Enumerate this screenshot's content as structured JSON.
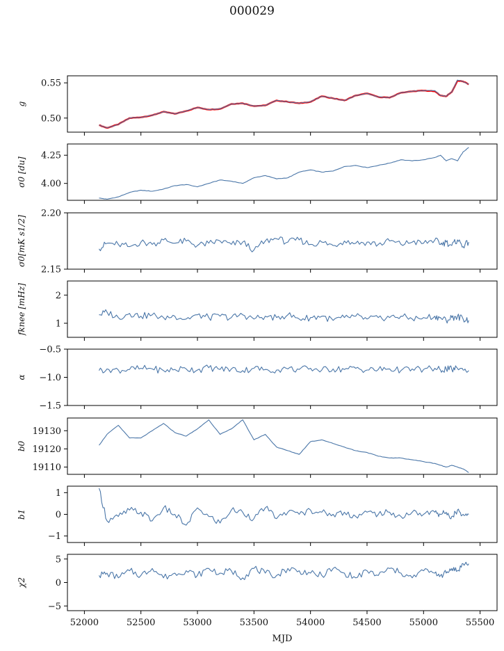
{
  "figure": {
    "title": "000029",
    "xlabel": "MJD"
  },
  "style": {
    "series_color": "#4a76a8",
    "overlay_color": "#ff0000",
    "axis_color": "#000000"
  },
  "chart_data": [
    {
      "type": "line",
      "ylabel": "g",
      "xlim": [
        51850,
        55650
      ],
      "ylim": [
        0.48,
        0.56
      ],
      "yticks": [
        0.5,
        0.55
      ],
      "ytick_labels": [
        "0.50",
        "0.55"
      ],
      "series": [
        {
          "role": "model",
          "x": [
            52130,
            52200,
            52300,
            52400,
            52500,
            52600,
            52700,
            52800,
            52900,
            53000,
            53100,
            53200,
            53300,
            53400,
            53500,
            53600,
            53700,
            53800,
            53900,
            54000,
            54100,
            54200,
            54300,
            54400,
            54500,
            54600,
            54700,
            54800,
            54900,
            55000,
            55100,
            55150,
            55200,
            55250,
            55300,
            55350,
            55400
          ],
          "values": [
            0.49,
            0.486,
            0.491,
            0.5,
            0.501,
            0.504,
            0.509,
            0.506,
            0.51,
            0.515,
            0.512,
            0.513,
            0.52,
            0.521,
            0.517,
            0.518,
            0.525,
            0.523,
            0.521,
            0.523,
            0.531,
            0.528,
            0.525,
            0.532,
            0.535,
            0.53,
            0.529,
            0.536,
            0.538,
            0.539,
            0.538,
            0.532,
            0.531,
            0.537,
            0.553,
            0.552,
            0.548
          ]
        },
        {
          "role": "data",
          "x": [
            52130,
            52200,
            52300,
            52400,
            52500,
            52600,
            52700,
            52800,
            52900,
            53000,
            53100,
            53200,
            53300,
            53400,
            53500,
            53600,
            53700,
            53800,
            53900,
            54000,
            54100,
            54200,
            54300,
            54400,
            54500,
            54600,
            54700,
            54800,
            54900,
            55000,
            55100,
            55150,
            55200,
            55250,
            55300,
            55350,
            55400
          ],
          "values": [
            0.49,
            0.486,
            0.491,
            0.5,
            0.501,
            0.504,
            0.509,
            0.506,
            0.51,
            0.515,
            0.512,
            0.513,
            0.52,
            0.521,
            0.517,
            0.518,
            0.525,
            0.523,
            0.521,
            0.523,
            0.531,
            0.528,
            0.525,
            0.532,
            0.535,
            0.53,
            0.529,
            0.536,
            0.538,
            0.539,
            0.539,
            0.532,
            0.531,
            0.537,
            0.554,
            0.552,
            0.548
          ]
        }
      ]
    },
    {
      "type": "line",
      "ylabel": "σ0 [du]",
      "xlim": [
        51850,
        55650
      ],
      "ylim": [
        3.85,
        4.35
      ],
      "yticks": [
        4.0,
        4.25
      ],
      "ytick_labels": [
        "4.00",
        "4.25"
      ],
      "series": [
        {
          "role": "data",
          "x": [
            52130,
            52200,
            52300,
            52400,
            52500,
            52600,
            52700,
            52800,
            52900,
            53000,
            53100,
            53200,
            53300,
            53400,
            53500,
            53600,
            53700,
            53800,
            53900,
            54000,
            54100,
            54200,
            54300,
            54400,
            54500,
            54600,
            54700,
            54800,
            54900,
            55000,
            55100,
            55150,
            55200,
            55250,
            55300,
            55350,
            55400
          ],
          "values": [
            3.87,
            3.86,
            3.88,
            3.92,
            3.94,
            3.93,
            3.95,
            3.98,
            3.99,
            3.97,
            4.0,
            4.03,
            4.02,
            4.0,
            4.05,
            4.07,
            4.04,
            4.05,
            4.1,
            4.12,
            4.1,
            4.11,
            4.15,
            4.16,
            4.14,
            4.16,
            4.18,
            4.21,
            4.2,
            4.21,
            4.23,
            4.25,
            4.2,
            4.22,
            4.2,
            4.28,
            4.32
          ]
        }
      ]
    },
    {
      "type": "line",
      "ylabel": "σ0[mK s1/2]",
      "xlim": [
        51850,
        55650
      ],
      "ylim": [
        2.15,
        2.2
      ],
      "yticks": [
        2.15,
        2.2
      ],
      "ytick_labels": [
        "2.15",
        "2.20"
      ],
      "series": [
        {
          "role": "data",
          "x": [
            52130,
            52200,
            52300,
            52400,
            52500,
            52600,
            52700,
            52800,
            52900,
            53000,
            53100,
            53200,
            53300,
            53400,
            53500,
            53600,
            53700,
            53800,
            53900,
            54000,
            54100,
            54200,
            54300,
            54400,
            54500,
            54600,
            54700,
            54800,
            54900,
            55000,
            55100,
            55150,
            55200,
            55250,
            55300,
            55350,
            55400
          ],
          "values": [
            2.168,
            2.173,
            2.172,
            2.17,
            2.174,
            2.172,
            2.176,
            2.173,
            2.175,
            2.171,
            2.173,
            2.175,
            2.172,
            2.174,
            2.167,
            2.175,
            2.177,
            2.174,
            2.176,
            2.172,
            2.174,
            2.171,
            2.175,
            2.173,
            2.174,
            2.172,
            2.175,
            2.172,
            2.174,
            2.173,
            2.176,
            2.172,
            2.174,
            2.171,
            2.176,
            2.17,
            2.174
          ]
        }
      ]
    },
    {
      "type": "line",
      "ylabel": "fknee [mHz]",
      "xlim": [
        51850,
        55650
      ],
      "ylim": [
        0.5,
        2.5
      ],
      "yticks": [
        1,
        2
      ],
      "ytick_labels": [
        "1",
        "2"
      ],
      "series": [
        {
          "role": "data",
          "x": [
            52130,
            52200,
            52300,
            52400,
            52500,
            52600,
            52700,
            52800,
            52900,
            53000,
            53100,
            53200,
            53300,
            53400,
            53500,
            53600,
            53700,
            53800,
            53900,
            54000,
            54100,
            54200,
            54300,
            54400,
            54500,
            54600,
            54700,
            54800,
            54900,
            55000,
            55100,
            55150,
            55200,
            55250,
            55300,
            55350,
            55400
          ],
          "values": [
            1.3,
            1.4,
            1.2,
            1.35,
            1.25,
            1.3,
            1.2,
            1.25,
            1.15,
            1.3,
            1.2,
            1.25,
            1.2,
            1.3,
            1.15,
            1.25,
            1.2,
            1.3,
            1.15,
            1.2,
            1.25,
            1.1,
            1.2,
            1.25,
            1.15,
            1.2,
            1.2,
            1.25,
            1.15,
            1.2,
            1.25,
            1.2,
            1.1,
            1.2,
            1.25,
            1.15,
            1.1
          ]
        }
      ]
    },
    {
      "type": "line",
      "ylabel": "α",
      "xlim": [
        51850,
        55650
      ],
      "ylim": [
        -1.5,
        -0.5
      ],
      "yticks": [
        -1.5,
        -1.0,
        -0.5
      ],
      "ytick_labels": [
        "−1.5",
        "−1.0",
        "−0.5"
      ],
      "series": [
        {
          "role": "data",
          "x": [
            52130,
            52200,
            52300,
            52400,
            52500,
            52600,
            52700,
            52800,
            52900,
            53000,
            53100,
            53200,
            53300,
            53400,
            53500,
            53600,
            53700,
            53800,
            53900,
            54000,
            54100,
            54200,
            54300,
            54400,
            54500,
            54600,
            54700,
            54800,
            54900,
            55000,
            55100,
            55150,
            55200,
            55250,
            55300,
            55350,
            55400
          ],
          "values": [
            -0.88,
            -0.85,
            -0.87,
            -0.86,
            -0.84,
            -0.85,
            -0.88,
            -0.86,
            -0.85,
            -0.87,
            -0.83,
            -0.86,
            -0.85,
            -0.88,
            -0.84,
            -0.86,
            -0.87,
            -0.85,
            -0.86,
            -0.84,
            -0.87,
            -0.85,
            -0.86,
            -0.84,
            -0.87,
            -0.86,
            -0.85,
            -0.88,
            -0.85,
            -0.86,
            -0.84,
            -0.87,
            -0.85,
            -0.86,
            -0.84,
            -0.87,
            -0.88
          ]
        }
      ]
    },
    {
      "type": "line",
      "ylabel": "b0",
      "xlim": [
        51850,
        55650
      ],
      "ylim": [
        19106,
        19137
      ],
      "yticks": [
        19110,
        19120,
        19130
      ],
      "ytick_labels": [
        "19110",
        "19120",
        "19130"
      ],
      "series": [
        {
          "role": "data",
          "x": [
            52130,
            52200,
            52300,
            52400,
            52500,
            52600,
            52700,
            52800,
            52900,
            53000,
            53100,
            53200,
            53300,
            53400,
            53500,
            53600,
            53700,
            53800,
            53900,
            54000,
            54100,
            54200,
            54300,
            54400,
            54500,
            54600,
            54700,
            54800,
            54900,
            55000,
            55100,
            55150,
            55200,
            55250,
            55300,
            55350,
            55400
          ],
          "values": [
            19122,
            19128,
            19133,
            19126,
            19126,
            19130,
            19134,
            19129,
            19127,
            19131,
            19136,
            19128,
            19131,
            19136,
            19125,
            19128,
            19121,
            19119,
            19117,
            19124,
            19125,
            19123,
            19121,
            19119,
            19118,
            19116,
            19115,
            19115,
            19114,
            19113,
            19112,
            19111,
            19110,
            19111,
            19110,
            19109,
            19107
          ]
        }
      ]
    },
    {
      "type": "line",
      "ylabel": "b1",
      "xlim": [
        51850,
        55650
      ],
      "ylim": [
        -1.3,
        1.3
      ],
      "yticks": [
        -1,
        0,
        1
      ],
      "ytick_labels": [
        "−1",
        "0",
        "1"
      ],
      "series": [
        {
          "role": "data",
          "x": [
            52130,
            52200,
            52300,
            52400,
            52500,
            52600,
            52700,
            52800,
            52900,
            53000,
            53100,
            53200,
            53300,
            53400,
            53500,
            53600,
            53700,
            53800,
            53900,
            54000,
            54100,
            54200,
            54300,
            54400,
            54500,
            54600,
            54700,
            54800,
            54900,
            55000,
            55100,
            55150,
            55200,
            55250,
            55300,
            55350,
            55400
          ],
          "values": [
            1.2,
            -0.3,
            -0.1,
            0.2,
            0.1,
            -0.3,
            0.3,
            0.0,
            -0.5,
            0.3,
            -0.1,
            -0.4,
            0.2,
            0.1,
            -0.2,
            0.3,
            -0.2,
            0.1,
            0.0,
            0.2,
            0.1,
            0.0,
            0.1,
            -0.1,
            0.1,
            0.0,
            0.1,
            -0.1,
            0.1,
            0.0,
            0.1,
            0.0,
            0.1,
            -0.1,
            0.2,
            0.0,
            0.0
          ]
        }
      ]
    },
    {
      "type": "line",
      "ylabel": "χ2",
      "xlim": [
        51850,
        55650
      ],
      "ylim": [
        -6,
        6
      ],
      "yticks": [
        -5,
        0,
        5
      ],
      "ytick_labels": [
        "−5",
        "0",
        "5"
      ],
      "xticks": [
        52000,
        52500,
        53000,
        53500,
        54000,
        54500,
        55000,
        55500
      ],
      "xtick_labels": [
        "52000",
        "52500",
        "53000",
        "53500",
        "54000",
        "54500",
        "55000",
        "55500"
      ],
      "series": [
        {
          "role": "data",
          "x": [
            52130,
            52200,
            52300,
            52400,
            52500,
            52600,
            52700,
            52800,
            52900,
            53000,
            53100,
            53200,
            53300,
            53400,
            53500,
            53600,
            53700,
            53800,
            53900,
            54000,
            54100,
            54200,
            54300,
            54400,
            54500,
            54600,
            54700,
            54800,
            54900,
            55000,
            55100,
            55150,
            55200,
            55250,
            55300,
            55350,
            55400
          ],
          "values": [
            1.5,
            2.0,
            1.0,
            2.5,
            1.5,
            3.0,
            1.0,
            2.0,
            2.5,
            1.5,
            3.0,
            2.0,
            2.5,
            1.0,
            3.0,
            2.0,
            1.5,
            3.0,
            2.5,
            2.0,
            1.5,
            3.0,
            2.0,
            1.0,
            2.5,
            1.5,
            3.0,
            2.0,
            1.0,
            2.5,
            2.0,
            1.5,
            2.0,
            3.0,
            2.5,
            4.0,
            4.0
          ]
        }
      ]
    }
  ]
}
